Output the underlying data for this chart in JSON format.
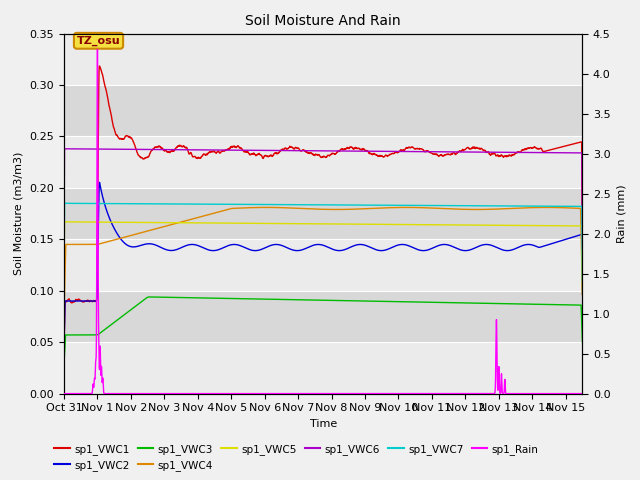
{
  "title": "Soil Moisture And Rain",
  "xlabel": "Time",
  "ylabel_left": "Soil Moisture (m3/m3)",
  "ylabel_right": "Rain (mm)",
  "station_label": "TZ_osu",
  "xlim": [
    0,
    15.5
  ],
  "ylim_left": [
    0.0,
    0.35
  ],
  "ylim_right": [
    0.0,
    4.5
  ],
  "x_tick_positions": [
    0,
    1,
    2,
    3,
    4,
    5,
    6,
    7,
    8,
    9,
    10,
    11,
    12,
    13,
    14,
    15
  ],
  "x_tick_labels": [
    "Oct 31",
    "Nov 1",
    "Nov 2",
    "Nov 3",
    "Nov 4",
    "Nov 5",
    "Nov 6",
    "Nov 7",
    "Nov 8",
    "Nov 9",
    "Nov 10",
    "Nov 11",
    "Nov 12",
    "Nov 13",
    "Nov 14",
    "Nov 15"
  ],
  "y_tick_left": [
    0.0,
    0.05,
    0.1,
    0.15,
    0.2,
    0.25,
    0.3,
    0.35
  ],
  "y_tick_right": [
    0.0,
    0.5,
    1.0,
    1.5,
    2.0,
    2.5,
    3.0,
    3.5,
    4.0,
    4.5
  ],
  "fig_bg": "#f0f0f0",
  "plot_bg_light": "#ebebeb",
  "plot_bg_dark": "#d8d8d8",
  "colors": {
    "VWC1": "#dd0000",
    "VWC2": "#0000dd",
    "VWC3": "#00bb00",
    "VWC4": "#dd8800",
    "VWC5": "#dddd00",
    "VWC6": "#aa00cc",
    "VWC7": "#00cccc",
    "Rain": "#ff00ff"
  },
  "lw": 1.0
}
